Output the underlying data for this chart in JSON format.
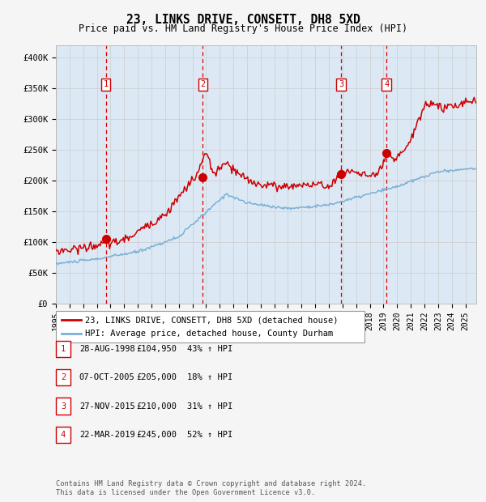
{
  "title": "23, LINKS DRIVE, CONSETT, DH8 5XD",
  "subtitle": "Price paid vs. HM Land Registry's House Price Index (HPI)",
  "footer": "Contains HM Land Registry data © Crown copyright and database right 2024.\nThis data is licensed under the Open Government Licence v3.0.",
  "legend_line1": "23, LINKS DRIVE, CONSETT, DH8 5XD (detached house)",
  "legend_line2": "HPI: Average price, detached house, County Durham",
  "transactions": [
    {
      "num": 1,
      "date": "28-AUG-1998",
      "price": 104950,
      "hpi": "43% ↑ HPI",
      "x": 1998.65
    },
    {
      "num": 2,
      "date": "07-OCT-2005",
      "price": 205000,
      "hpi": "18% ↑ HPI",
      "x": 2005.77
    },
    {
      "num": 3,
      "date": "27-NOV-2015",
      "price": 210000,
      "hpi": "31% ↑ HPI",
      "x": 2015.9
    },
    {
      "num": 4,
      "date": "22-MAR-2019",
      "price": 245000,
      "hpi": "52% ↑ HPI",
      "x": 2019.22
    }
  ],
  "vline_x": [
    1998.65,
    2005.77,
    2015.9,
    2019.22
  ],
  "ylim": [
    0,
    420000
  ],
  "xlim_start": 1995.0,
  "xlim_end": 2025.8,
  "grid_color": "#cccccc",
  "background_color": "#f5f5f5",
  "plot_bg_color": "#dce9f5",
  "red_line_color": "#cc0000",
  "blue_line_color": "#7bafd4",
  "vline_color": "#dd0000",
  "dot_color": "#cc0000",
  "label_box_color": "#cc0000",
  "yticks": [
    0,
    50000,
    100000,
    150000,
    200000,
    250000,
    300000,
    350000,
    400000
  ],
  "ytick_labels": [
    "£0",
    "£50K",
    "£100K",
    "£150K",
    "£200K",
    "£250K",
    "£300K",
    "£350K",
    "£400K"
  ],
  "xtick_years": [
    1995,
    1996,
    1997,
    1998,
    1999,
    2000,
    2001,
    2002,
    2003,
    2004,
    2005,
    2006,
    2007,
    2008,
    2009,
    2010,
    2011,
    2012,
    2013,
    2014,
    2015,
    2016,
    2017,
    2018,
    2019,
    2020,
    2021,
    2022,
    2023,
    2024,
    2025
  ]
}
